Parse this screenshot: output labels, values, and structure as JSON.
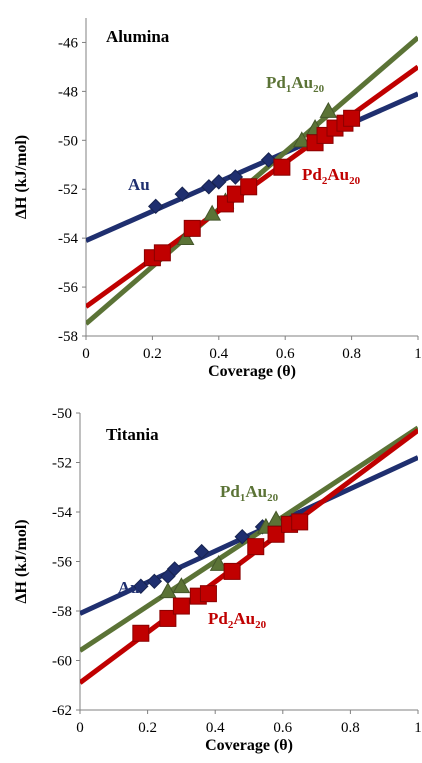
{
  "chart_data": [
    {
      "type": "scatter",
      "title": "Alumina",
      "xlabel": "Coverage (θ)",
      "ylabel": "ΔH (kJ/mol)",
      "xlim": [
        0,
        1
      ],
      "ylim": [
        -58,
        -45
      ],
      "xticks": [
        "0",
        "0.2",
        "0.4",
        "0.6",
        "0.8",
        "1"
      ],
      "yticks": [
        "-58",
        "-56",
        "-54",
        "-52",
        "-50",
        "-48",
        "-46"
      ],
      "grid": false,
      "series": [
        {
          "name": "Au",
          "name_main": "Au",
          "name_sub": "",
          "color": "#1f2f6f",
          "marker": "diamond",
          "points": [
            [
              0.21,
              -52.7
            ],
            [
              0.29,
              -52.2
            ],
            [
              0.37,
              -51.9
            ],
            [
              0.4,
              -51.7
            ],
            [
              0.45,
              -51.5
            ],
            [
              0.55,
              -50.8
            ]
          ],
          "fit": {
            "intercept": -54.1,
            "slope": 6.0
          }
        },
        {
          "name": "Pd1Au20",
          "name_main": "Pd",
          "name_sub": "1",
          "name_main2": "Au",
          "name_sub2": "20",
          "color": "#5b7336",
          "marker": "triangle",
          "points": [
            [
              0.3,
              -54.0
            ],
            [
              0.38,
              -53.0
            ],
            [
              0.42,
              -52.5
            ],
            [
              0.65,
              -50.0
            ],
            [
              0.69,
              -49.5
            ],
            [
              0.73,
              -48.8
            ]
          ],
          "fit": {
            "intercept": -57.5,
            "slope": 11.7
          }
        },
        {
          "name": "Pd2Au20",
          "name_main": "Pd",
          "name_sub": "2",
          "name_main2": "Au",
          "name_sub2": "20",
          "color": "#c00000",
          "marker": "square",
          "points": [
            [
              0.2,
              -54.8
            ],
            [
              0.23,
              -54.6
            ],
            [
              0.32,
              -53.6
            ],
            [
              0.42,
              -52.6
            ],
            [
              0.45,
              -52.2
            ],
            [
              0.49,
              -51.9
            ],
            [
              0.59,
              -51.1
            ],
            [
              0.69,
              -50.1
            ],
            [
              0.72,
              -49.8
            ],
            [
              0.75,
              -49.5
            ],
            [
              0.78,
              -49.3
            ],
            [
              0.8,
              -49.1
            ]
          ],
          "fit": {
            "intercept": -56.8,
            "slope": 9.8
          }
        }
      ]
    },
    {
      "type": "scatter",
      "title": "Titania",
      "xlabel": "Coverage (θ)",
      "ylabel": "ΔH (kJ/mol)",
      "xlim": [
        0,
        1
      ],
      "ylim": [
        -62,
        -50
      ],
      "xticks": [
        "0",
        "0.2",
        "0.4",
        "0.6",
        "0.8",
        "1"
      ],
      "yticks": [
        "-62",
        "-60",
        "-58",
        "-56",
        "-54",
        "-52",
        "-50"
      ],
      "grid": false,
      "series": [
        {
          "name": "Au",
          "name_main": "Au",
          "name_sub": "",
          "color": "#1f2f6f",
          "marker": "diamond",
          "points": [
            [
              0.18,
              -57.0
            ],
            [
              0.22,
              -56.8
            ],
            [
              0.26,
              -56.6
            ],
            [
              0.28,
              -56.3
            ],
            [
              0.36,
              -55.6
            ],
            [
              0.48,
              -55.0
            ],
            [
              0.54,
              -54.6
            ]
          ],
          "fit": {
            "intercept": -58.1,
            "slope": 6.3
          }
        },
        {
          "name": "Pd1Au20",
          "name_main": "Pd",
          "name_sub": "1",
          "name_main2": "Au",
          "name_sub2": "20",
          "color": "#5b7336",
          "marker": "triangle",
          "points": [
            [
              0.26,
              -57.2
            ],
            [
              0.3,
              -57.0
            ],
            [
              0.41,
              -56.1
            ],
            [
              0.55,
              -54.6
            ],
            [
              0.58,
              -54.3
            ]
          ],
          "fit": {
            "intercept": -59.6,
            "slope": 9.0
          }
        },
        {
          "name": "Pd2Au20",
          "name_main": "Pd",
          "name_sub": "2",
          "name_main2": "Au",
          "name_sub2": "20",
          "color": "#c00000",
          "marker": "square",
          "points": [
            [
              0.18,
              -58.9
            ],
            [
              0.26,
              -58.3
            ],
            [
              0.3,
              -57.8
            ],
            [
              0.35,
              -57.4
            ],
            [
              0.38,
              -57.3
            ],
            [
              0.45,
              -56.4
            ],
            [
              0.52,
              -55.4
            ],
            [
              0.58,
              -54.9
            ],
            [
              0.62,
              -54.5
            ],
            [
              0.65,
              -54.4
            ]
          ],
          "fit": {
            "intercept": -60.9,
            "slope": 10.2
          }
        }
      ]
    }
  ]
}
